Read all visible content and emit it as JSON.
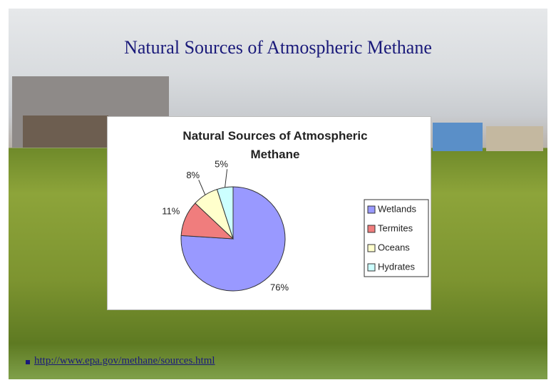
{
  "slide": {
    "title": "Natural Sources of Atmospheric Methane",
    "link": "http://www.epa.gov/methane/sources.html"
  },
  "chart_data": {
    "type": "pie",
    "title": "Natural Sources of Atmospheric Methane",
    "categories": [
      "Wetlands",
      "Termites",
      "Oceans",
      "Hydrates"
    ],
    "values": [
      76,
      11,
      8,
      5
    ],
    "value_labels": [
      "76%",
      "11%",
      "8%",
      "5%"
    ],
    "colors": [
      "#9999ff",
      "#f07d7d",
      "#ffffcc",
      "#ccffff"
    ],
    "legend": "right"
  }
}
